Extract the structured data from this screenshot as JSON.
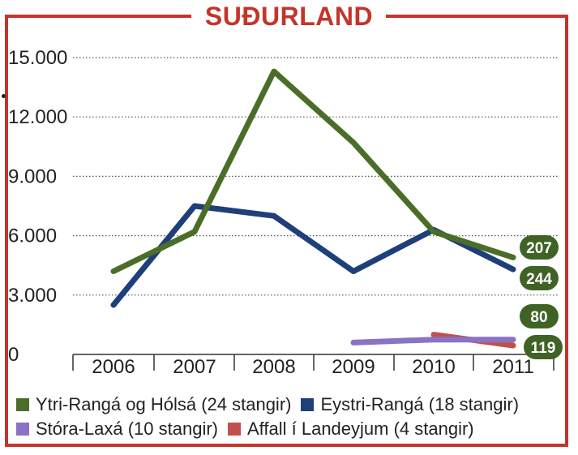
{
  "title": "SUÐURLAND",
  "colors": {
    "frame": "#c3352b",
    "title": "#c3352b",
    "green": "#4a6e28",
    "blue": "#1f3f7a",
    "purple": "#8a72c4",
    "red": "#c0504d"
  },
  "chart_data": {
    "type": "line",
    "title": "SUÐURLAND",
    "x": [
      "2006",
      "2007",
      "2008",
      "2009",
      "2010",
      "2011"
    ],
    "ylim": [
      0,
      15000
    ],
    "yticks": [
      0,
      3000,
      6000,
      9000,
      12000,
      15000
    ],
    "ytick_labels": [
      "0",
      "3.000",
      "6.000",
      "9.000",
      "12.000",
      "15.000"
    ],
    "grid": true,
    "legend_position": "bottom",
    "series": [
      {
        "name": "Ytri-Rangá og Hólsá (24 stangir)",
        "color": "#4a6e28",
        "values": [
          4200,
          6200,
          14300,
          10700,
          6200,
          4900
        ],
        "end_label": "207"
      },
      {
        "name": "Eystri-Rangá (18 stangir)",
        "color": "#1f3f7a",
        "values": [
          2500,
          7500,
          7000,
          4200,
          6300,
          4300
        ],
        "end_label": "244"
      },
      {
        "name": "Stóra-Laxá (10 stangir)",
        "color": "#8a72c4",
        "values": [
          null,
          null,
          null,
          600,
          750,
          750
        ],
        "end_label": "80"
      },
      {
        "name": "Affall í Landeyjum (4 stangir)",
        "color": "#c0504d",
        "values": [
          null,
          null,
          null,
          null,
          1000,
          450
        ],
        "end_label": "119"
      }
    ]
  }
}
